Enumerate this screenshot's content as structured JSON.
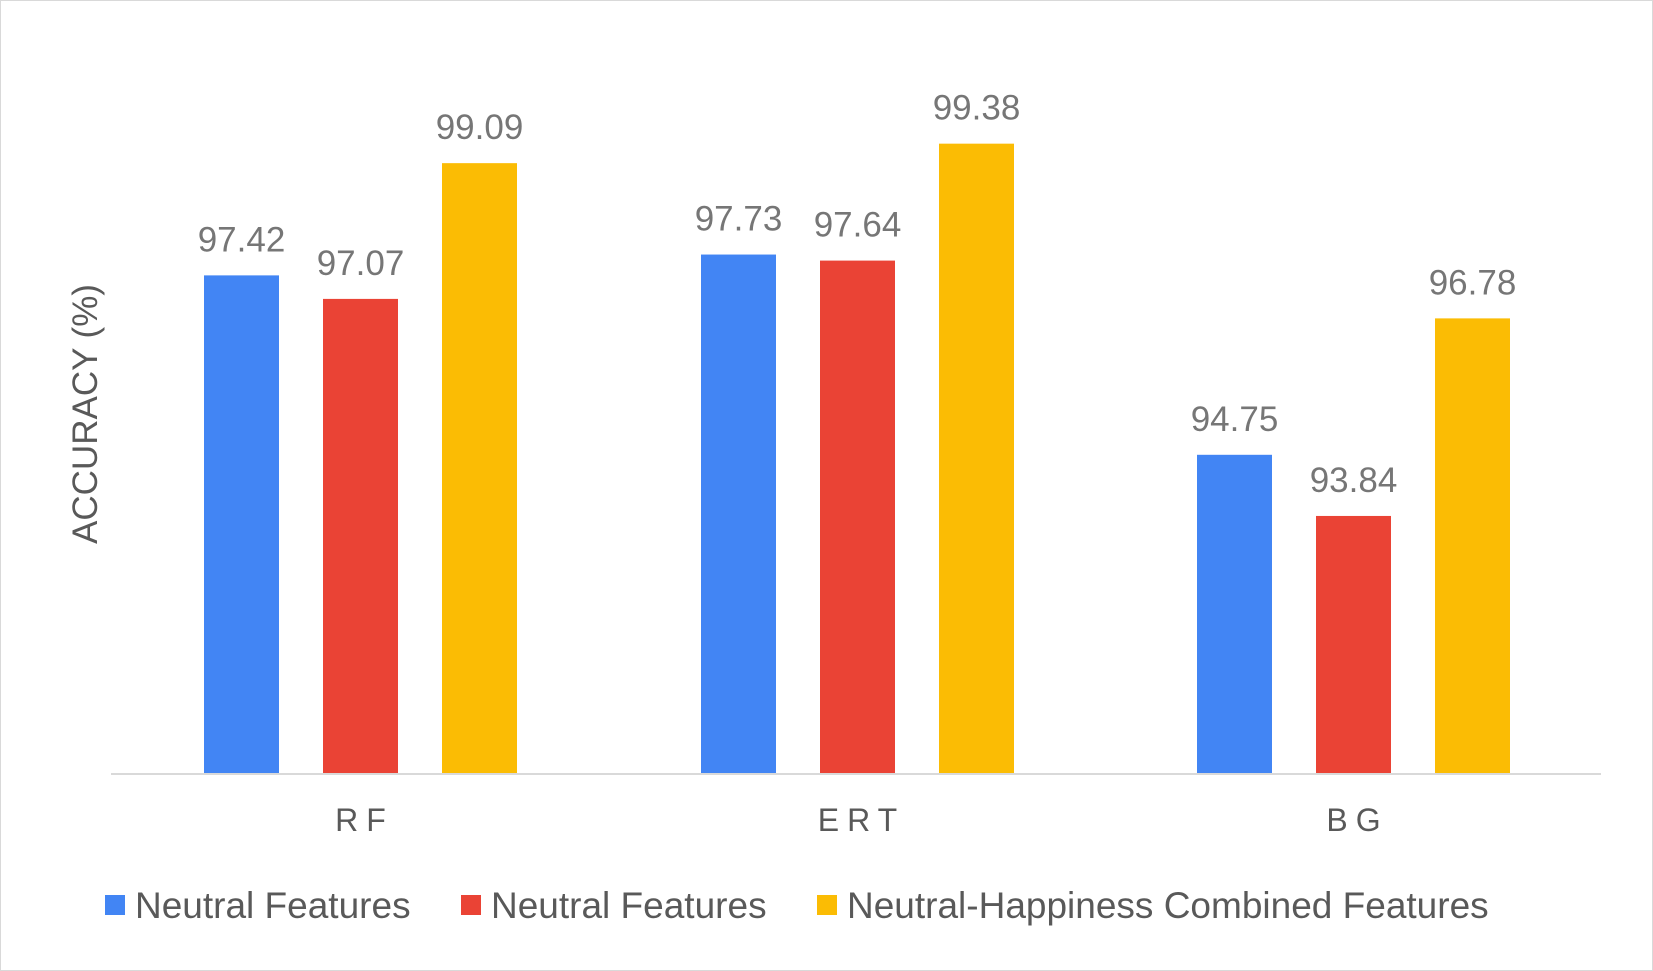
{
  "chart_data": {
    "type": "bar",
    "categories": [
      "RF",
      "ERT",
      "BG"
    ],
    "series": [
      {
        "name": "Neutral Features",
        "values": [
          97.42,
          97.73,
          94.75
        ],
        "color": "#4285f4"
      },
      {
        "name": "Neutral Features",
        "values": [
          97.07,
          97.64,
          93.84
        ],
        "color": "#ea4335"
      },
      {
        "name": "Neutral-Happiness Combined Features",
        "values": [
          99.09,
          99.38,
          96.78
        ],
        "color": "#fbbc04"
      }
    ],
    "value_labels": [
      [
        "97.42",
        "97.73",
        "94.75"
      ],
      [
        "97.07",
        "97.64",
        "93.84"
      ],
      [
        "99.09",
        "99.38",
        "96.78"
      ]
    ],
    "title": "",
    "xlabel": "",
    "ylabel": "ACCURACY (%)",
    "ylim": [
      90,
      100
    ],
    "grid": false,
    "legend_position": "bottom"
  }
}
